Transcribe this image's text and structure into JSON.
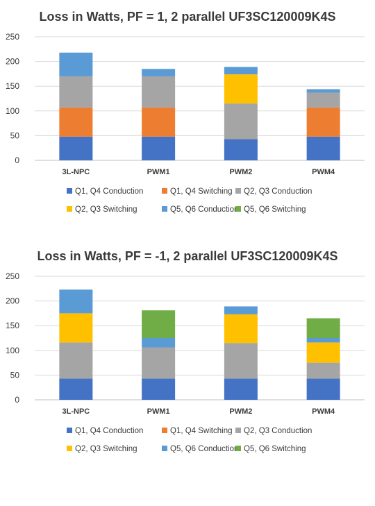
{
  "chart_data": [
    {
      "type": "bar",
      "stacked": true,
      "title": "Loss in Watts, PF = 1, 2 parallel UF3SC120009K4S",
      "categories": [
        "3L-NPC",
        "PWM1",
        "PWM2",
        "PWM4"
      ],
      "ylim": [
        0,
        250
      ],
      "yticks": [
        0,
        50,
        100,
        150,
        200,
        250
      ],
      "grid": true,
      "legend_position": "bottom",
      "series": [
        {
          "name": "Q1, Q4 Conduction",
          "color": "#4472c4",
          "values": [
            48,
            48,
            43,
            48
          ]
        },
        {
          "name": "Q1, Q4 Switching",
          "color": "#ed7d31",
          "values": [
            59,
            59,
            0,
            59
          ]
        },
        {
          "name": "Q2, Q3 Conduction",
          "color": "#a5a5a5",
          "values": [
            63,
            63,
            72,
            30
          ]
        },
        {
          "name": "Q2, Q3 Switching",
          "color": "#ffc000",
          "values": [
            0,
            0,
            59,
            0
          ]
        },
        {
          "name": "Q5, Q6 Conduction",
          "color": "#5b9bd5",
          "values": [
            48,
            15,
            15,
            7
          ]
        },
        {
          "name": "Q5, Q6 Switching",
          "color": "#70ad47",
          "values": [
            0,
            0,
            0,
            0
          ]
        }
      ]
    },
    {
      "type": "bar",
      "stacked": true,
      "title": "Loss in Watts, PF = -1, 2 parallel UF3SC120009K4S",
      "categories": [
        "3L-NPC",
        "PWM1",
        "PWM2",
        "PWM4"
      ],
      "ylim": [
        0,
        250
      ],
      "yticks": [
        0,
        50,
        100,
        150,
        200,
        250
      ],
      "grid": true,
      "legend_position": "bottom",
      "series": [
        {
          "name": "Q1, Q4 Conduction",
          "color": "#4472c4",
          "values": [
            43,
            43,
            43,
            43
          ]
        },
        {
          "name": "Q1, Q4 Switching",
          "color": "#ed7d31",
          "values": [
            0,
            0,
            0,
            0
          ]
        },
        {
          "name": "Q2, Q3 Conduction",
          "color": "#a5a5a5",
          "values": [
            73,
            63,
            72,
            32
          ]
        },
        {
          "name": "Q2, Q3 Switching",
          "color": "#ffc000",
          "values": [
            59,
            0,
            58,
            41
          ]
        },
        {
          "name": "Q5, Q6 Conduction",
          "color": "#5b9bd5",
          "values": [
            48,
            19,
            16,
            9
          ]
        },
        {
          "name": "Q5, Q6 Switching",
          "color": "#70ad47",
          "values": [
            0,
            56,
            0,
            40
          ]
        }
      ]
    }
  ]
}
